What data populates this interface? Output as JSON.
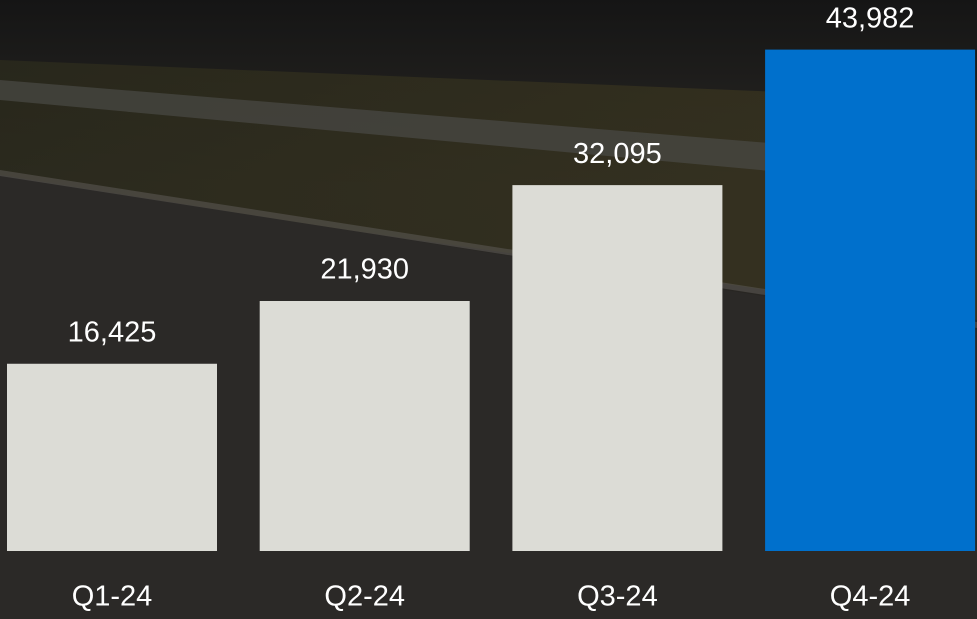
{
  "chart_data": {
    "type": "bar",
    "categories": [
      "Q1-24",
      "Q2-24",
      "Q3-24",
      "Q4-24"
    ],
    "values": [
      16425,
      21930,
      32095,
      43982
    ],
    "value_labels": [
      "16,425",
      "21,930",
      "32,095",
      "43,982"
    ],
    "colors": [
      "#dcdcd6",
      "#dcdcd6",
      "#dcdcd6",
      "#0070cc"
    ],
    "ylim": [
      0,
      45000
    ]
  }
}
